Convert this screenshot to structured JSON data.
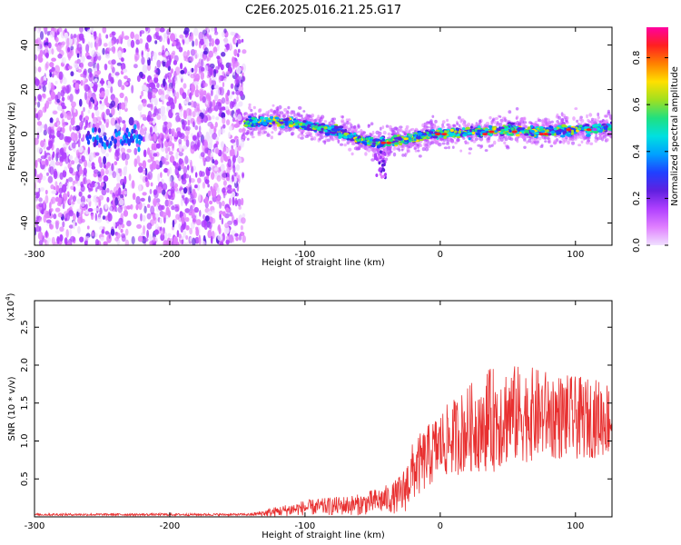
{
  "chart_data": [
    {
      "type": "heatmap",
      "title": "C2E6.2025.016.21.25.G17",
      "xlabel": "Height of straight line (km)",
      "ylabel": "Frequency (Hz)",
      "xlim": [
        -300,
        127
      ],
      "ylim": [
        -50,
        48
      ],
      "xticks": [
        "-300",
        "-200",
        "-100",
        "0",
        "100"
      ],
      "yticks": [
        "40",
        "20",
        "0",
        "-20",
        "-40"
      ],
      "colorbar": {
        "label": "Normalized spectral amplitude",
        "ticks": [
          "0.0",
          "0.2",
          "0.4",
          "0.6",
          "0.8"
        ],
        "range": [
          0,
          0.93
        ],
        "colors": [
          "#f0e0ff",
          "#e080ff",
          "#b040ff",
          "#6020e0",
          "#2040ff",
          "#00a0ff",
          "#00e0e0",
          "#20e080",
          "#a0e020",
          "#ffe000",
          "#ff8000",
          "#ff2020",
          "#ff00a0"
        ]
      },
      "ridge": [
        {
          "x": -145,
          "y": 5
        },
        {
          "x": -120,
          "y": 6
        },
        {
          "x": -100,
          "y": 4
        },
        {
          "x": -80,
          "y": 2
        },
        {
          "x": -60,
          "y": -2
        },
        {
          "x": -45,
          "y": -4
        },
        {
          "x": -35,
          "y": -3
        },
        {
          "x": -25,
          "y": -2
        },
        {
          "x": 0,
          "y": 0
        },
        {
          "x": 25,
          "y": 1
        },
        {
          "x": 50,
          "y": 2
        },
        {
          "x": 75,
          "y": 1
        },
        {
          "x": 100,
          "y": 2
        },
        {
          "x": 127,
          "y": 3
        }
      ],
      "noise_region": [
        -300,
        -145
      ]
    },
    {
      "type": "line",
      "xlabel": "Height of straight line (km)",
      "ylabel": "SNR (10 * v/v)",
      "scale_note": "(x10",
      "scale_exp": "4",
      "xlim": [
        -300,
        127
      ],
      "ylim": [
        0,
        2.85
      ],
      "xticks": [
        "-300",
        "-200",
        "-100",
        "0",
        "100"
      ],
      "yticks": [
        "2.5",
        "2.0",
        "1.5",
        "1.0",
        "0.5"
      ],
      "color": "#e83030",
      "trend": [
        {
          "x": -300,
          "y": 0.03
        },
        {
          "x": -140,
          "y": 0.03
        },
        {
          "x": -125,
          "y": 0.06
        },
        {
          "x": -100,
          "y": 0.12
        },
        {
          "x": -60,
          "y": 0.16
        },
        {
          "x": -35,
          "y": 0.25
        },
        {
          "x": -28,
          "y": 0.3
        },
        {
          "x": -20,
          "y": 0.6
        },
        {
          "x": 0,
          "y": 0.95
        },
        {
          "x": 25,
          "y": 1.2
        },
        {
          "x": 50,
          "y": 1.35
        },
        {
          "x": 75,
          "y": 1.35
        },
        {
          "x": 100,
          "y": 1.3
        },
        {
          "x": 127,
          "y": 1.3
        }
      ],
      "spread": [
        {
          "x": -300,
          "y": 0.015
        },
        {
          "x": -140,
          "y": 0.015
        },
        {
          "x": -125,
          "y": 0.06
        },
        {
          "x": -100,
          "y": 0.1
        },
        {
          "x": -60,
          "y": 0.14
        },
        {
          "x": -35,
          "y": 0.2
        },
        {
          "x": -20,
          "y": 0.4
        },
        {
          "x": 0,
          "y": 0.45
        },
        {
          "x": 40,
          "y": 0.7
        },
        {
          "x": 75,
          "y": 0.6
        },
        {
          "x": 127,
          "y": 0.5
        }
      ]
    }
  ]
}
